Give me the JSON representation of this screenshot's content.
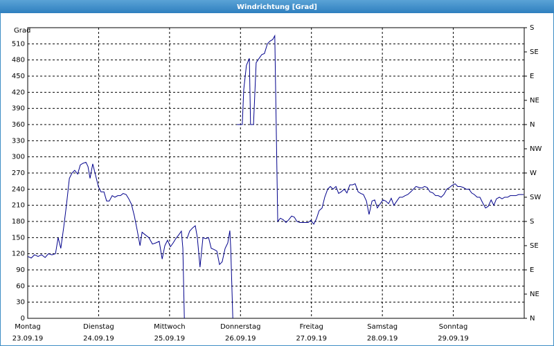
{
  "chart_data": {
    "type": "line",
    "title": "Windrichtung [Grad]",
    "y_label": "Grad",
    "color": "#00008b",
    "grid": true,
    "xlim": [
      0,
      168
    ],
    "xticks": [
      {
        "value": 0,
        "label": "Montag",
        "date": "23.09.19"
      },
      {
        "value": 24,
        "label": "Dienstag",
        "date": "24.09.19"
      },
      {
        "value": 48,
        "label": "Mittwoch",
        "date": "25.09.19"
      },
      {
        "value": 72,
        "label": "Donnerstag",
        "date": "26.09.19"
      },
      {
        "value": 96,
        "label": "Freitag",
        "date": "27.09.19"
      },
      {
        "value": 120,
        "label": "Samstag",
        "date": "28.09.19"
      },
      {
        "value": 144,
        "label": "Sonntag",
        "date": "29.09.19"
      }
    ],
    "ylim": [
      0,
      540
    ],
    "yticks": [
      0,
      30,
      60,
      90,
      120,
      150,
      180,
      210,
      240,
      270,
      300,
      330,
      360,
      390,
      420,
      450,
      480,
      510
    ],
    "y2lim": [
      0,
      540
    ],
    "y2ticks": [
      {
        "value": 0,
        "label": "N"
      },
      {
        "value": 45,
        "label": "NE"
      },
      {
        "value": 90,
        "label": "E"
      },
      {
        "value": 135,
        "label": "SE"
      },
      {
        "value": 180,
        "label": "S"
      },
      {
        "value": 225,
        "label": "SW"
      },
      {
        "value": 270,
        "label": "W"
      },
      {
        "value": 315,
        "label": "NW"
      },
      {
        "value": 360,
        "label": "N"
      },
      {
        "value": 405,
        "label": "NE"
      },
      {
        "value": 450,
        "label": "E"
      },
      {
        "value": 495,
        "label": "SE"
      },
      {
        "value": 540,
        "label": "S"
      }
    ],
    "x": [
      0,
      1.2,
      2.3,
      3.5,
      4.7,
      5.9,
      7.0,
      8.2,
      9.4,
      10.3,
      11.2,
      12.2,
      13.1,
      14.1,
      15.0,
      15.9,
      16.9,
      17.8,
      18.7,
      19.7,
      20.4,
      21.1,
      22.0,
      23.0,
      23.9,
      24.8,
      25.8,
      26.7,
      27.6,
      28.6,
      29.5,
      30.5,
      31.4,
      32.3,
      33.3,
      34.2,
      35.1,
      36.1,
      37.0,
      38.0,
      38.7,
      39.8,
      41.0,
      42.2,
      43.3,
      44.5,
      45.5,
      46.4,
      47.3,
      48.3,
      49.2,
      50.1,
      51.1,
      52.0,
      52.5,
      53.0,
      53.5,
      53.9,
      54.8,
      55.8,
      56.7,
      57.4,
      58.3,
      59.3,
      60.2,
      61.2,
      62.1,
      63.0,
      64.0,
      64.9,
      65.8,
      66.8,
      67.7,
      68.4,
      68.7,
      69.4,
      70.0,
      70.8,
      72.6,
      73.1,
      74.0,
      75.0,
      75.4,
      76.4,
      77.3,
      78.3,
      79.2,
      80.1,
      81.1,
      82.0,
      82.9,
      83.6,
      84.6,
      85.5,
      86.5,
      87.4,
      88.3,
      89.3,
      90.2,
      91.1,
      92.1,
      93.0,
      94.0,
      94.9,
      95.8,
      96.8,
      97.7,
      98.6,
      99.6,
      100.5,
      101.5,
      102.4,
      103.3,
      104.3,
      105.2,
      106.1,
      107.1,
      108.0,
      109.0,
      109.9,
      110.8,
      111.8,
      112.7,
      113.6,
      114.6,
      115.5,
      116.5,
      117.4,
      118.3,
      119.3,
      120.2,
      121.1,
      122.1,
      123.0,
      123.9,
      124.9,
      125.8,
      126.8,
      127.7,
      128.6,
      129.6,
      130.5,
      131.4,
      132.4,
      133.3,
      134.3,
      135.2,
      136.1,
      137.1,
      138.0,
      138.9,
      139.9,
      140.8,
      141.8,
      142.7,
      143.6,
      144.6,
      145.5,
      146.4,
      147.4,
      148.3,
      149.3,
      150.2,
      151.1,
      152.1,
      153.0,
      153.9,
      154.9,
      155.8,
      156.8,
      157.7,
      158.6,
      159.6,
      160.5,
      161.4,
      162.4,
      163.3,
      164.2,
      165.2,
      166.1,
      167.1,
      167.8
    ],
    "values": [
      115,
      112,
      118,
      115,
      118,
      113,
      120,
      118,
      120,
      150,
      130,
      170,
      210,
      260,
      270,
      275,
      268,
      285,
      288,
      290,
      282,
      260,
      287,
      265,
      245,
      235,
      235,
      218,
      218,
      228,
      225,
      228,
      228,
      232,
      230,
      222,
      212,
      190,
      165,
      135,
      160,
      155,
      150,
      138,
      140,
      143,
      110,
      135,
      145,
      133,
      140,
      148,
      155,
      162,
      130,
      0,
      null,
      148,
      162,
      168,
      172,
      150,
      95,
      150,
      148,
      150,
      130,
      128,
      125,
      100,
      105,
      130,
      140,
      163,
      130,
      0,
      null,
      360,
      360,
      425,
      470,
      483,
      360,
      360,
      475,
      483,
      490,
      492,
      510,
      515,
      518,
      525,
      180,
      186,
      183,
      178,
      183,
      190,
      188,
      180,
      178,
      178,
      178,
      178,
      182,
      175,
      185,
      200,
      205,
      225,
      240,
      245,
      240,
      245,
      232,
      235,
      240,
      233,
      248,
      248,
      250,
      235,
      232,
      230,
      218,
      193,
      218,
      220,
      205,
      213,
      220,
      218,
      213,
      223,
      210,
      218,
      225,
      225,
      228,
      230,
      235,
      240,
      245,
      243,
      242,
      245,
      243,
      235,
      233,
      228,
      228,
      225,
      230,
      240,
      243,
      247,
      250,
      245,
      245,
      243,
      240,
      240,
      233,
      230,
      225,
      225,
      215,
      205,
      208,
      220,
      210,
      222,
      225,
      222,
      225,
      225,
      228,
      228,
      228,
      230,
      230,
      230
    ]
  }
}
